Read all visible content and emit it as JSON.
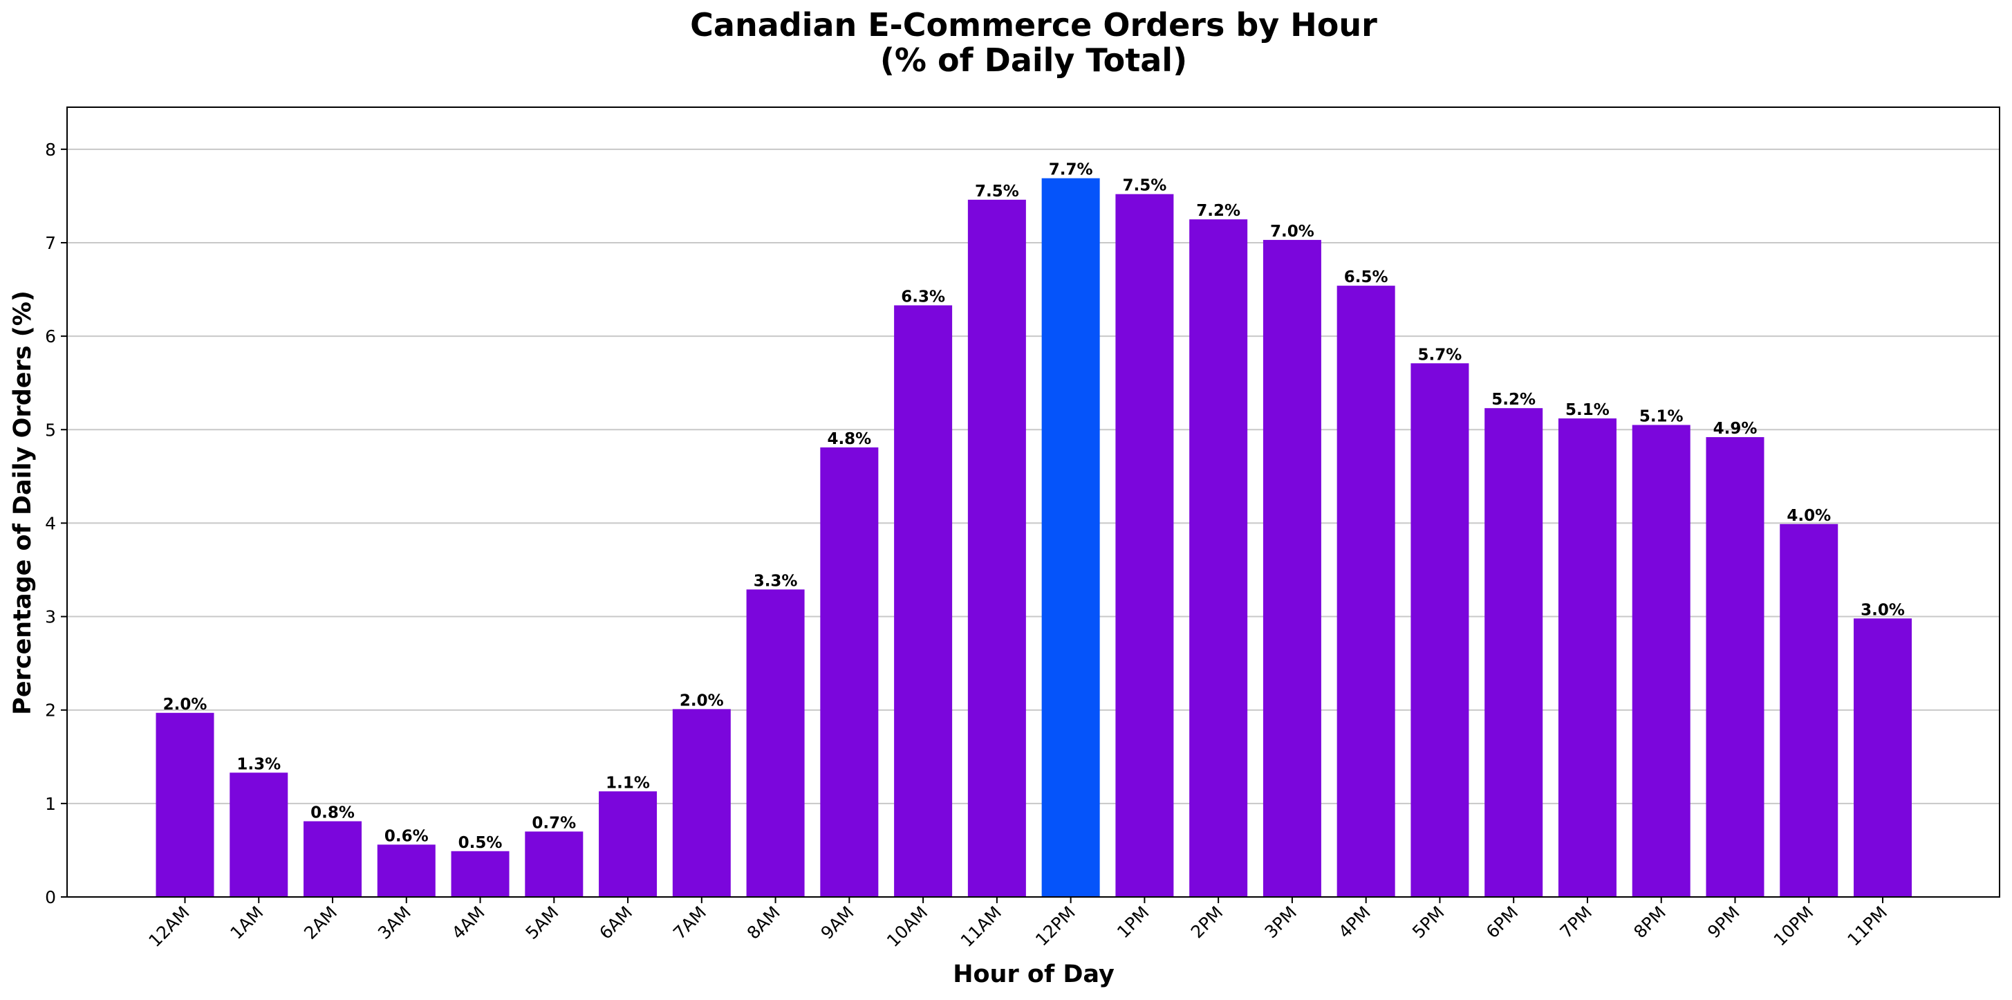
{
  "chart_data": {
    "type": "bar",
    "title": "Canadian E-Commerce Orders by Hour",
    "subtitle": "(% of Daily Total)",
    "xlabel": "Hour of Day",
    "ylabel": "Percentage of Daily Orders (%)",
    "ylim": [
      0,
      8.45
    ],
    "yticks": [
      0,
      1,
      2,
      3,
      4,
      5,
      6,
      7,
      8
    ],
    "grid": "horizontal",
    "legend": "none",
    "categories": [
      "12AM",
      "1AM",
      "2AM",
      "3AM",
      "4AM",
      "5AM",
      "6AM",
      "7AM",
      "8AM",
      "9AM",
      "10AM",
      "11AM",
      "12PM",
      "1PM",
      "2PM",
      "3PM",
      "4PM",
      "5PM",
      "6PM",
      "7PM",
      "8PM",
      "9PM",
      "10PM",
      "11PM"
    ],
    "values": [
      1.97,
      1.33,
      0.81,
      0.56,
      0.49,
      0.7,
      1.13,
      2.01,
      3.29,
      4.81,
      6.33,
      7.46,
      7.69,
      7.52,
      7.25,
      7.03,
      6.54,
      5.71,
      5.23,
      5.12,
      5.05,
      4.92,
      3.99,
      2.98
    ],
    "data_labels": [
      "2.0%",
      "1.3%",
      "0.8%",
      "0.6%",
      "0.5%",
      "0.7%",
      "1.1%",
      "2.0%",
      "3.3%",
      "4.8%",
      "6.3%",
      "7.5%",
      "7.7%",
      "7.5%",
      "7.2%",
      "7.0%",
      "6.5%",
      "5.7%",
      "5.2%",
      "5.1%",
      "5.1%",
      "4.9%",
      "4.0%",
      "3.0%"
    ],
    "highlight_index": 12,
    "colors": {
      "bar": "#7b06dc",
      "highlight": "#0554fa",
      "grid": "#c8c8c8",
      "axis": "#000000"
    }
  }
}
